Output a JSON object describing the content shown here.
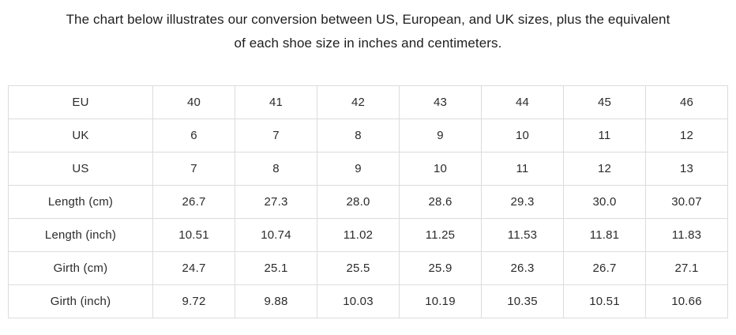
{
  "header": {
    "line1": "The chart below illustrates our conversion between US, European, and UK sizes, plus the equivalent",
    "line2": "of each shoe size in inches and centimeters."
  },
  "chart_data": {
    "type": "table",
    "title": "The chart below illustrates our conversion between US, European, and UK sizes, plus the equivalent of each shoe size in inches and centimeters.",
    "rows": [
      {
        "label": "EU",
        "values": [
          "40",
          "41",
          "42",
          "43",
          "44",
          "45",
          "46"
        ]
      },
      {
        "label": "UK",
        "values": [
          "6",
          "7",
          "8",
          "9",
          "10",
          "11",
          "12"
        ]
      },
      {
        "label": "US",
        "values": [
          "7",
          "8",
          "9",
          "10",
          "11",
          "12",
          "13"
        ]
      },
      {
        "label": "Length (cm)",
        "values": [
          "26.7",
          "27.3",
          "28.0",
          "28.6",
          "29.3",
          "30.0",
          "30.07"
        ]
      },
      {
        "label": "Length (inch)",
        "values": [
          "10.51",
          "10.74",
          "11.02",
          "11.25",
          "11.53",
          "11.81",
          "11.83"
        ]
      },
      {
        "label": "Girth (cm)",
        "values": [
          "24.7",
          "25.1",
          "25.5",
          "25.9",
          "26.3",
          "26.7",
          "27.1"
        ]
      },
      {
        "label": "Girth (inch)",
        "values": [
          "9.72",
          "9.88",
          "10.03",
          "10.19",
          "10.35",
          "10.51",
          "10.66"
        ]
      }
    ]
  },
  "colors": {
    "background": "#ffffff",
    "border": "#dcdcdc",
    "cell_text": "#2b2b2b",
    "caption_text": "#1e1e1e"
  }
}
